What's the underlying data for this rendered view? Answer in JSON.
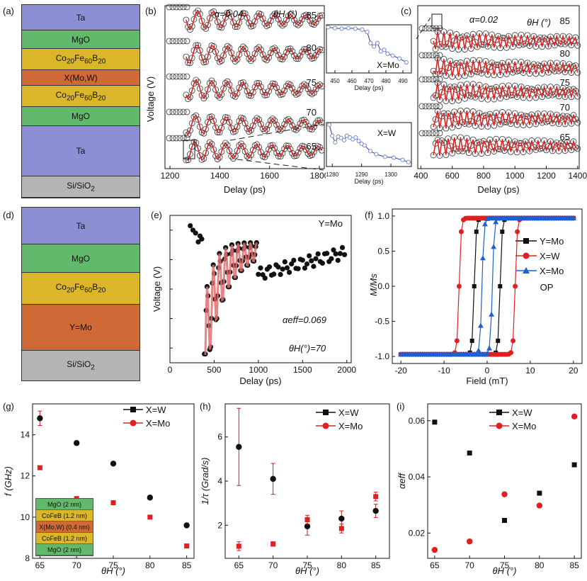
{
  "panel_labels": {
    "a": "(a)",
    "b": "(b)",
    "c": "(c)",
    "d": "(d)",
    "e": "(e)",
    "f": "(f)",
    "g": "(g)",
    "h": "(h)",
    "i": "(i)"
  },
  "stack_a": [
    {
      "label": "Ta",
      "color": "#8c8fd3"
    },
    {
      "label": "MgO",
      "color": "#63b96b"
    },
    {
      "label": "Co20Fe60B20",
      "color": "#dcb629"
    },
    {
      "label": "X(Mo,W)",
      "color": "#cf6935"
    },
    {
      "label": "Co20Fe60B20",
      "color": "#dcb629"
    },
    {
      "label": "MgO",
      "color": "#63b96b"
    },
    {
      "label": "Ta",
      "color": "#8c8fd3"
    },
    {
      "label": "Si/SiO2",
      "color": "#b5b5b5"
    }
  ],
  "stack_d": [
    {
      "label": "Ta",
      "color": "#8c8fd3"
    },
    {
      "label": "MgO",
      "color": "#63b96b"
    },
    {
      "label": "Co20Fe60B20",
      "color": "#dcb629"
    },
    {
      "label": "Y=Mo",
      "color": "#cf6935"
    },
    {
      "label": "Si/SiO2",
      "color": "#b5b5b5"
    }
  ],
  "chart_data": [
    {
      "id": "b",
      "type": "line",
      "ylabel": "Voltage (V)",
      "xlabel": "Delay (ps)",
      "xlim": [
        1180,
        1820
      ],
      "xticks": [
        1200,
        1400,
        1600,
        1800
      ],
      "alpha_label": "α=0.04",
      "theta_label": "θH (°)",
      "trace_labels": [
        "85",
        "80",
        "75",
        "70",
        "65"
      ]
    },
    {
      "id": "b_inset_top",
      "type": "line",
      "xlabel": "Delay (ps)",
      "label": "X=Mo",
      "xlim": [
        445,
        495
      ],
      "xticks": [
        450,
        460,
        470,
        480,
        490
      ],
      "x": [
        446,
        450,
        454,
        458,
        462,
        466,
        469,
        471,
        473,
        475,
        477,
        479,
        481,
        484,
        488,
        492
      ],
      "y": [
        0.95,
        0.93,
        0.92,
        0.93,
        0.92,
        0.9,
        0.85,
        0.62,
        0.55,
        0.62,
        0.45,
        0.48,
        0.4,
        0.36,
        0.3,
        0.22
      ]
    },
    {
      "id": "b_inset_bottom",
      "type": "line",
      "xlabel": "Delay (ps)",
      "label": "X=W",
      "xlim": [
        1278,
        1307
      ],
      "xticks": [
        1280,
        1290,
        1300
      ],
      "x": [
        1279,
        1280,
        1281,
        1282,
        1283,
        1284,
        1285,
        1286,
        1287,
        1288,
        1289,
        1290,
        1291,
        1293,
        1295,
        1298,
        1301,
        1304,
        1306
      ],
      "y": [
        0.95,
        0.7,
        0.55,
        0.68,
        0.65,
        0.6,
        0.7,
        0.66,
        0.62,
        0.66,
        0.58,
        0.52,
        0.48,
        0.35,
        0.28,
        0.22,
        0.2,
        0.15,
        0.1
      ]
    },
    {
      "id": "c",
      "type": "line",
      "ylabel": "",
      "xlabel": "Delay (ps)",
      "xlim": [
        380,
        1410
      ],
      "xticks": [
        400,
        600,
        800,
        1000,
        1200,
        1400
      ],
      "alpha_label": "α=0.02",
      "theta_label": "θH (°)",
      "trace_labels": [
        "85",
        "80",
        "75",
        "70",
        "65"
      ]
    },
    {
      "id": "e",
      "type": "line",
      "ylabel": "Voltage (V)",
      "xlabel": "Delay (ps)",
      "xlim": [
        0,
        2050
      ],
      "xticks": [
        0,
        500,
        1000,
        1500,
        2000
      ],
      "label": "Y=Mo",
      "alpha_label": "αeff=0.069",
      "theta_label": "θH(°)=70"
    },
    {
      "id": "f",
      "type": "line",
      "ylabel": "M/Ms",
      "xlabel": "Field (mT)",
      "xlim": [
        -22,
        22
      ],
      "ylim": [
        -1.1,
        1.1
      ],
      "xticks": [
        -20,
        -10,
        0,
        10,
        20
      ],
      "yticks": [
        -1.0,
        -0.5,
        0.0,
        0.5,
        1.0
      ],
      "annotation": "OP",
      "series": [
        {
          "name": "Y=Mo",
          "color": "#111111",
          "marker": "square",
          "hc": 3
        },
        {
          "name": "X=W",
          "color": "#e02020",
          "marker": "circle",
          "hc": 6.5
        },
        {
          "name": "X=Mo",
          "color": "#1f5fd0",
          "marker": "triangle",
          "hc": 1.2
        }
      ]
    },
    {
      "id": "g",
      "type": "scatter",
      "ylabel": "f (GHz)",
      "xlabel": "θH (°)",
      "xlim": [
        64,
        86
      ],
      "ylim": [
        8,
        15.5
      ],
      "xticks": [
        65,
        70,
        75,
        80,
        85
      ],
      "yticks": [
        8,
        10,
        12,
        14
      ],
      "series": [
        {
          "name": "X=W",
          "color": "#111111",
          "x": [
            65,
            70,
            75,
            80,
            85
          ],
          "y": [
            14.8,
            13.6,
            12.6,
            10.95,
            9.6
          ],
          "err": [
            0.35,
            0.1,
            0.05,
            0.05,
            0.05
          ]
        },
        {
          "name": "X=Mo",
          "color": "#e02020",
          "x": [
            65,
            70,
            75,
            80,
            85
          ],
          "y": [
            12.4,
            10.9,
            10.7,
            10.0,
            8.6
          ],
          "err": [
            0.05,
            0.05,
            0.05,
            0.05,
            0.05
          ]
        }
      ],
      "inset_stack": [
        "MgO (2 nm)",
        "CoFeB (1.2 nm)",
        "X(Mo,W) (0.4 nm)",
        "CoFeB (1.2 nm)",
        "MgO (2 nm)"
      ]
    },
    {
      "id": "h",
      "type": "scatter",
      "ylabel": "1/τ (Grad/s)",
      "xlabel": "θH (°)",
      "xlim": [
        63,
        87
      ],
      "ylim": [
        0.5,
        7.5
      ],
      "xticks": [
        65,
        70,
        75,
        80,
        85
      ],
      "yticks": [
        2,
        4,
        6
      ],
      "series": [
        {
          "name": "X=W",
          "color": "#111111",
          "x": [
            65,
            70,
            75,
            80,
            85
          ],
          "y": [
            5.55,
            4.1,
            1.95,
            2.3,
            2.65
          ],
          "err": [
            1.75,
            0.7,
            0.4,
            0.35,
            0.3
          ]
        },
        {
          "name": "X=Mo",
          "color": "#e02020",
          "x": [
            65,
            70,
            75,
            80,
            85
          ],
          "y": [
            1.05,
            1.15,
            2.25,
            1.85,
            3.3
          ],
          "err": [
            0.2,
            0.1,
            0.2,
            0.2,
            0.2
          ]
        }
      ]
    },
    {
      "id": "i",
      "type": "scatter",
      "ylabel": "αeff",
      "xlabel": "θH (°)",
      "xlim": [
        64,
        86
      ],
      "ylim": [
        0.011,
        0.066
      ],
      "xticks": [
        65,
        70,
        75,
        80,
        85
      ],
      "yticks": [
        0.02,
        0.04,
        0.06
      ],
      "series": [
        {
          "name": "X=W",
          "color": "#111111",
          "marker": "square",
          "x": [
            65,
            70,
            75,
            80,
            85
          ],
          "y": [
            0.0595,
            0.0485,
            0.0245,
            0.0342,
            0.0443
          ]
        },
        {
          "name": "X=Mo",
          "color": "#e02020",
          "marker": "circle",
          "x": [
            65,
            70,
            75,
            80,
            85
          ],
          "y": [
            0.014,
            0.017,
            0.0338,
            0.0298,
            0.0615
          ]
        }
      ]
    }
  ]
}
